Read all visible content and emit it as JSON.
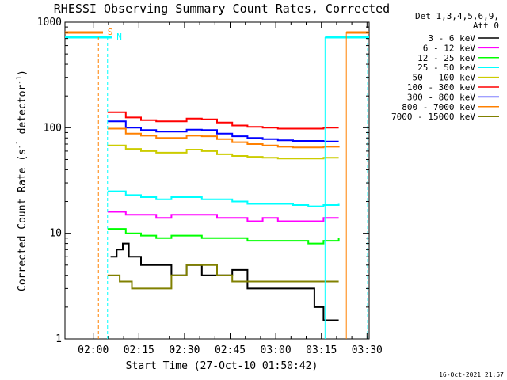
{
  "chart_data": {
    "type": "line",
    "title": "RHESSI Observing Summary Count Rates, Corrected",
    "xlabel": "Start Time (27-Oct-10 01:50:42)",
    "ylabel_main": "Corrected Count Rate (s",
    "ylabel_sup1": "-1",
    "ylabel_mid": " detector",
    "ylabel_sup2": "-1",
    "ylabel_end": ")",
    "yscale": "log",
    "ylim": [
      1,
      1000
    ],
    "xlim_minutes": [
      0,
      100
    ],
    "x_tick_labels": [
      "02:00",
      "02:15",
      "02:30",
      "02:45",
      "03:00",
      "03:15",
      "03:30"
    ],
    "x_tick_minutes": [
      9.3,
      24.3,
      39.3,
      54.3,
      69.3,
      84.3,
      99.3
    ],
    "y_tick_labels": [
      "1",
      "10",
      "100",
      "1000"
    ],
    "y_tick_values": [
      1,
      10,
      100,
      1000
    ],
    "legend_header": [
      "Det 1,3,4,5,6,9,",
      "Att 0"
    ],
    "series": [
      {
        "name": "3 - 6 keV",
        "color": "#000000",
        "points": [
          [
            15,
            6
          ],
          [
            17,
            7
          ],
          [
            19,
            8
          ],
          [
            21,
            6
          ],
          [
            25,
            5
          ],
          [
            30,
            5
          ],
          [
            35,
            4
          ],
          [
            40,
            5
          ],
          [
            45,
            4
          ],
          [
            50,
            4
          ],
          [
            55,
            4.5
          ],
          [
            60,
            3
          ],
          [
            65,
            3
          ],
          [
            70,
            3
          ],
          [
            75,
            3
          ],
          [
            80,
            3
          ],
          [
            82,
            2
          ],
          [
            85,
            1.5
          ],
          [
            90,
            1.5
          ]
        ]
      },
      {
        "name": "6 - 12 keV",
        "color": "#ff00ff",
        "points": [
          [
            14,
            16
          ],
          [
            20,
            15
          ],
          [
            25,
            15
          ],
          [
            30,
            14
          ],
          [
            35,
            15
          ],
          [
            40,
            15
          ],
          [
            45,
            15
          ],
          [
            50,
            14
          ],
          [
            55,
            14
          ],
          [
            60,
            13
          ],
          [
            65,
            14
          ],
          [
            70,
            13
          ],
          [
            75,
            13
          ],
          [
            80,
            13
          ],
          [
            85,
            14
          ],
          [
            90,
            14
          ]
        ]
      },
      {
        "name": "12 - 25 keV",
        "color": "#00ff00",
        "points": [
          [
            14,
            11
          ],
          [
            20,
            10
          ],
          [
            25,
            9.5
          ],
          [
            30,
            9
          ],
          [
            35,
            9.5
          ],
          [
            40,
            9.5
          ],
          [
            45,
            9
          ],
          [
            50,
            9
          ],
          [
            55,
            9
          ],
          [
            60,
            8.5
          ],
          [
            65,
            8.5
          ],
          [
            70,
            8.5
          ],
          [
            75,
            8.5
          ],
          [
            80,
            8
          ],
          [
            85,
            8.5
          ],
          [
            90,
            9
          ]
        ]
      },
      {
        "name": "25 - 50 keV",
        "color": "#00ffff",
        "points": [
          [
            14,
            25
          ],
          [
            20,
            23
          ],
          [
            25,
            22
          ],
          [
            30,
            21
          ],
          [
            35,
            22
          ],
          [
            40,
            22
          ],
          [
            45,
            21
          ],
          [
            50,
            21
          ],
          [
            55,
            20
          ],
          [
            60,
            19
          ],
          [
            65,
            19
          ],
          [
            70,
            19
          ],
          [
            75,
            18.5
          ],
          [
            80,
            18
          ],
          [
            85,
            18.5
          ],
          [
            90,
            19
          ]
        ]
      },
      {
        "name": "50 - 100 keV",
        "color": "#cccc00",
        "points": [
          [
            14,
            68
          ],
          [
            20,
            63
          ],
          [
            25,
            60
          ],
          [
            30,
            58
          ],
          [
            35,
            58
          ],
          [
            40,
            62
          ],
          [
            45,
            60
          ],
          [
            50,
            56
          ],
          [
            55,
            54
          ],
          [
            60,
            53
          ],
          [
            65,
            52
          ],
          [
            70,
            51
          ],
          [
            75,
            51
          ],
          [
            80,
            51
          ],
          [
            85,
            52
          ],
          [
            90,
            52
          ]
        ]
      },
      {
        "name": "100 - 300 keV",
        "color": "#ff0000",
        "points": [
          [
            14,
            140
          ],
          [
            20,
            125
          ],
          [
            25,
            118
          ],
          [
            30,
            115
          ],
          [
            35,
            115
          ],
          [
            40,
            122
          ],
          [
            45,
            120
          ],
          [
            50,
            112
          ],
          [
            55,
            105
          ],
          [
            60,
            102
          ],
          [
            65,
            100
          ],
          [
            70,
            98
          ],
          [
            75,
            98
          ],
          [
            80,
            98
          ],
          [
            85,
            100
          ],
          [
            90,
            100
          ]
        ]
      },
      {
        "name": "300 - 800 keV",
        "color": "#0000ff",
        "points": [
          [
            14,
            115
          ],
          [
            20,
            100
          ],
          [
            25,
            95
          ],
          [
            30,
            92
          ],
          [
            35,
            92
          ],
          [
            40,
            96
          ],
          [
            45,
            95
          ],
          [
            50,
            88
          ],
          [
            55,
            83
          ],
          [
            60,
            80
          ],
          [
            65,
            78
          ],
          [
            70,
            76
          ],
          [
            75,
            75
          ],
          [
            80,
            75
          ],
          [
            85,
            74
          ],
          [
            90,
            74
          ]
        ]
      },
      {
        "name": "800 - 7000 keV",
        "color": "#ff8000",
        "points": [
          [
            14,
            98
          ],
          [
            20,
            88
          ],
          [
            25,
            84
          ],
          [
            30,
            80
          ],
          [
            35,
            80
          ],
          [
            40,
            84
          ],
          [
            45,
            83
          ],
          [
            50,
            78
          ],
          [
            55,
            73
          ],
          [
            60,
            70
          ],
          [
            65,
            68
          ],
          [
            70,
            66
          ],
          [
            75,
            65
          ],
          [
            80,
            65
          ],
          [
            85,
            66
          ],
          [
            90,
            67
          ]
        ]
      },
      {
        "name": "7000 - 15000 keV",
        "color": "#808000",
        "points": [
          [
            14,
            4
          ],
          [
            18,
            3.5
          ],
          [
            22,
            3
          ],
          [
            26,
            3
          ],
          [
            30,
            3
          ],
          [
            35,
            4
          ],
          [
            40,
            5
          ],
          [
            45,
            5
          ],
          [
            50,
            4
          ],
          [
            55,
            3.5
          ],
          [
            60,
            3.5
          ],
          [
            65,
            3.5
          ],
          [
            70,
            3.5
          ],
          [
            75,
            3.5
          ],
          [
            80,
            3.5
          ],
          [
            85,
            3.5
          ],
          [
            90,
            3.5
          ]
        ]
      }
    ],
    "annotations": [
      {
        "label": "S",
        "color": "#ff8000"
      },
      {
        "label": "N",
        "color": "#00ffff"
      }
    ],
    "grid": false,
    "legend_placement": "right"
  },
  "timestamp": "16-Oct-2021 21:57"
}
